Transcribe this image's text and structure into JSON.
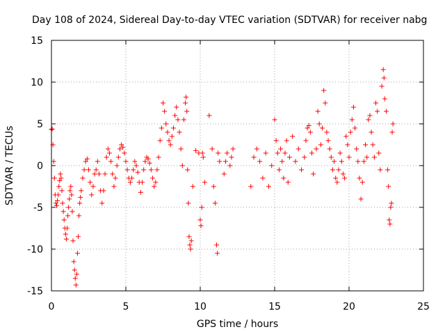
{
  "chart_data": {
    "type": "scatter",
    "title": "Day 108 of 2024, Sidereal Day-to-day VTEC variation (SDTVAR) for receiver nabg",
    "xlabel": "GPS time / hours",
    "ylabel": "SDTVAR / TECUs",
    "xlim": [
      0,
      25
    ],
    "ylim": [
      -15,
      15
    ],
    "xticks": [
      0,
      5,
      10,
      15,
      20,
      25
    ],
    "xtick_labels": [
      "0",
      "5",
      "10",
      "15",
      "20",
      "25"
    ],
    "yticks": [
      -15,
      -10,
      -5,
      0,
      5,
      10,
      15
    ],
    "ytick_labels": [
      "-15",
      "-10",
      "-5",
      "0",
      "5",
      "10",
      "15"
    ],
    "grid": true,
    "legend": "none",
    "marker": "plus",
    "series_color": "#ff0000",
    "series": [
      {
        "name": "SDTVAR",
        "points": [
          [
            0.0,
            4.3
          ],
          [
            0.05,
            4.4
          ],
          [
            0.1,
            2.5
          ],
          [
            0.15,
            0.5
          ],
          [
            0.2,
            -1.5
          ],
          [
            0.25,
            -3.5
          ],
          [
            0.3,
            -4.5
          ],
          [
            0.35,
            -4.8
          ],
          [
            0.4,
            -4.2
          ],
          [
            0.45,
            -3.5
          ],
          [
            0.5,
            -2.5
          ],
          [
            0.55,
            -1.8
          ],
          [
            0.6,
            -1.0
          ],
          [
            0.65,
            -1.5
          ],
          [
            0.7,
            -3.0
          ],
          [
            0.75,
            -4.5
          ],
          [
            0.8,
            -5.5
          ],
          [
            0.85,
            -6.5
          ],
          [
            0.9,
            -7.5
          ],
          [
            0.95,
            -8.2
          ],
          [
            1.0,
            -8.8
          ],
          [
            1.05,
            -7.5
          ],
          [
            1.1,
            -6.0
          ],
          [
            1.15,
            -5.0
          ],
          [
            1.2,
            -4.0
          ],
          [
            1.25,
            -3.0
          ],
          [
            1.3,
            -2.5
          ],
          [
            1.35,
            -3.5
          ],
          [
            1.4,
            -5.5
          ],
          [
            1.45,
            -9.0
          ],
          [
            1.5,
            -11.5
          ],
          [
            1.55,
            -12.5
          ],
          [
            1.6,
            -13.5
          ],
          [
            1.65,
            -14.3
          ],
          [
            1.7,
            -13.0
          ],
          [
            1.75,
            -10.5
          ],
          [
            1.8,
            -8.5
          ],
          [
            1.85,
            -6.0
          ],
          [
            1.9,
            -4.5
          ],
          [
            1.95,
            -3.8
          ],
          [
            2.0,
            -3.0
          ],
          [
            2.1,
            -1.5
          ],
          [
            2.2,
            -0.5
          ],
          [
            2.3,
            0.5
          ],
          [
            2.4,
            0.8
          ],
          [
            2.5,
            -0.5
          ],
          [
            2.6,
            -2.0
          ],
          [
            2.7,
            -3.5
          ],
          [
            2.8,
            -2.5
          ],
          [
            2.9,
            -1.0
          ],
          [
            3.0,
            -0.5
          ],
          [
            3.1,
            0.5
          ],
          [
            3.2,
            -1.0
          ],
          [
            3.3,
            -3.0
          ],
          [
            3.4,
            -4.5
          ],
          [
            3.5,
            -3.0
          ],
          [
            3.6,
            -1.0
          ],
          [
            3.7,
            1.0
          ],
          [
            3.8,
            2.0
          ],
          [
            3.9,
            1.5
          ],
          [
            4.0,
            0.5
          ],
          [
            4.1,
            -1.0
          ],
          [
            4.2,
            -2.5
          ],
          [
            4.3,
            -1.5
          ],
          [
            4.4,
            0.0
          ],
          [
            4.5,
            1.0
          ],
          [
            4.6,
            2.0
          ],
          [
            4.7,
            2.5
          ],
          [
            4.8,
            2.2
          ],
          [
            4.9,
            1.5
          ],
          [
            5.0,
            0.5
          ],
          [
            5.1,
            -0.5
          ],
          [
            5.2,
            -1.5
          ],
          [
            5.3,
            -2.0
          ],
          [
            5.4,
            -1.5
          ],
          [
            5.5,
            -0.5
          ],
          [
            5.6,
            0.5
          ],
          [
            5.7,
            0.0
          ],
          [
            5.8,
            -0.8
          ],
          [
            5.9,
            -2.0
          ],
          [
            6.0,
            -3.2
          ],
          [
            6.1,
            -2.0
          ],
          [
            6.2,
            -0.5
          ],
          [
            6.3,
            0.5
          ],
          [
            6.4,
            1.0
          ],
          [
            6.5,
            0.8
          ],
          [
            6.6,
            0.3
          ],
          [
            6.7,
            -0.5
          ],
          [
            6.8,
            -1.5
          ],
          [
            6.9,
            -2.5
          ],
          [
            7.0,
            -2.0
          ],
          [
            7.1,
            -0.5
          ],
          [
            7.2,
            1.0
          ],
          [
            7.3,
            3.0
          ],
          [
            7.4,
            4.5
          ],
          [
            7.5,
            7.5
          ],
          [
            7.6,
            6.5
          ],
          [
            7.7,
            5.0
          ],
          [
            7.8,
            4.0
          ],
          [
            7.9,
            3.0
          ],
          [
            8.0,
            2.5
          ],
          [
            8.1,
            3.5
          ],
          [
            8.2,
            4.5
          ],
          [
            8.3,
            6.0
          ],
          [
            8.4,
            7.0
          ],
          [
            8.5,
            5.5
          ],
          [
            8.6,
            4.0
          ],
          [
            8.7,
            2.0
          ],
          [
            8.8,
            0.0
          ],
          [
            8.9,
            5.5
          ],
          [
            9.0,
            7.5
          ],
          [
            9.05,
            8.2
          ],
          [
            9.1,
            6.5
          ],
          [
            9.15,
            -0.5
          ],
          [
            9.2,
            -4.5
          ],
          [
            9.25,
            -8.5
          ],
          [
            9.3,
            -9.5
          ],
          [
            9.35,
            -10.0
          ],
          [
            9.4,
            -9.0
          ],
          [
            9.5,
            -2.5
          ],
          [
            9.7,
            1.8
          ],
          [
            9.9,
            1.5
          ],
          [
            10.0,
            -6.5
          ],
          [
            10.05,
            -7.2
          ],
          [
            10.1,
            -5.0
          ],
          [
            10.15,
            1.5
          ],
          [
            10.2,
            1.0
          ],
          [
            10.3,
            -2.0
          ],
          [
            10.6,
            6.0
          ],
          [
            10.8,
            2.0
          ],
          [
            10.9,
            -2.5
          ],
          [
            11.0,
            -4.5
          ],
          [
            11.1,
            -9.5
          ],
          [
            11.15,
            -10.5
          ],
          [
            11.2,
            1.5
          ],
          [
            11.3,
            0.5
          ],
          [
            11.6,
            -1.0
          ],
          [
            11.7,
            0.5
          ],
          [
            11.8,
            1.5
          ],
          [
            12.0,
            0.0
          ],
          [
            12.1,
            1.0
          ],
          [
            12.2,
            2.0
          ],
          [
            13.4,
            -2.5
          ],
          [
            13.6,
            1.0
          ],
          [
            13.8,
            2.0
          ],
          [
            14.0,
            0.5
          ],
          [
            14.2,
            -1.5
          ],
          [
            14.4,
            1.5
          ],
          [
            14.6,
            -2.5
          ],
          [
            14.8,
            0.0
          ],
          [
            15.0,
            5.5
          ],
          [
            15.1,
            3.0
          ],
          [
            15.2,
            1.5
          ],
          [
            15.3,
            -0.5
          ],
          [
            15.4,
            2.0
          ],
          [
            15.5,
            0.5
          ],
          [
            15.6,
            -1.5
          ],
          [
            15.7,
            1.5
          ],
          [
            15.8,
            3.0
          ],
          [
            15.9,
            -2.0
          ],
          [
            16.0,
            1.0
          ],
          [
            16.2,
            3.5
          ],
          [
            16.4,
            0.5
          ],
          [
            16.6,
            2.0
          ],
          [
            16.8,
            -0.5
          ],
          [
            17.0,
            1.0
          ],
          [
            17.1,
            3.0
          ],
          [
            17.2,
            4.5
          ],
          [
            17.3,
            4.8
          ],
          [
            17.4,
            4.0
          ],
          [
            17.5,
            1.5
          ],
          [
            17.6,
            -1.0
          ],
          [
            17.8,
            2.0
          ],
          [
            17.9,
            6.5
          ],
          [
            18.0,
            5.0
          ],
          [
            18.1,
            2.5
          ],
          [
            18.2,
            4.5
          ],
          [
            18.3,
            9.0
          ],
          [
            18.4,
            7.5
          ],
          [
            18.5,
            4.0
          ],
          [
            18.6,
            3.0
          ],
          [
            18.7,
            2.0
          ],
          [
            18.8,
            1.0
          ],
          [
            18.9,
            -0.5
          ],
          [
            19.0,
            0.5
          ],
          [
            19.1,
            -1.5
          ],
          [
            19.2,
            -2.0
          ],
          [
            19.3,
            -0.5
          ],
          [
            19.4,
            1.5
          ],
          [
            19.5,
            0.5
          ],
          [
            19.6,
            -1.0
          ],
          [
            19.7,
            -1.5
          ],
          [
            19.8,
            3.5
          ],
          [
            19.9,
            2.5
          ],
          [
            20.0,
            1.0
          ],
          [
            20.1,
            4.0
          ],
          [
            20.2,
            5.5
          ],
          [
            20.3,
            7.0
          ],
          [
            20.4,
            4.5
          ],
          [
            20.5,
            2.0
          ],
          [
            20.6,
            0.5
          ],
          [
            20.7,
            -1.5
          ],
          [
            20.8,
            -4.0
          ],
          [
            20.9,
            -2.0
          ],
          [
            21.0,
            0.5
          ],
          [
            21.1,
            2.5
          ],
          [
            21.2,
            1.0
          ],
          [
            21.3,
            5.5
          ],
          [
            21.4,
            6.0
          ],
          [
            21.5,
            4.0
          ],
          [
            21.6,
            2.5
          ],
          [
            21.7,
            1.0
          ],
          [
            21.8,
            7.5
          ],
          [
            21.9,
            6.5
          ],
          [
            22.0,
            1.5
          ],
          [
            22.1,
            -0.5
          ],
          [
            22.2,
            9.5
          ],
          [
            22.3,
            11.5
          ],
          [
            22.35,
            10.5
          ],
          [
            22.4,
            8.0
          ],
          [
            22.5,
            6.5
          ],
          [
            22.6,
            -0.5
          ],
          [
            22.65,
            -2.5
          ],
          [
            22.7,
            -6.5
          ],
          [
            22.75,
            -7.0
          ],
          [
            22.8,
            -5.0
          ],
          [
            22.85,
            -4.5
          ],
          [
            22.9,
            4.0
          ],
          [
            22.95,
            5.0
          ]
        ]
      }
    ]
  }
}
